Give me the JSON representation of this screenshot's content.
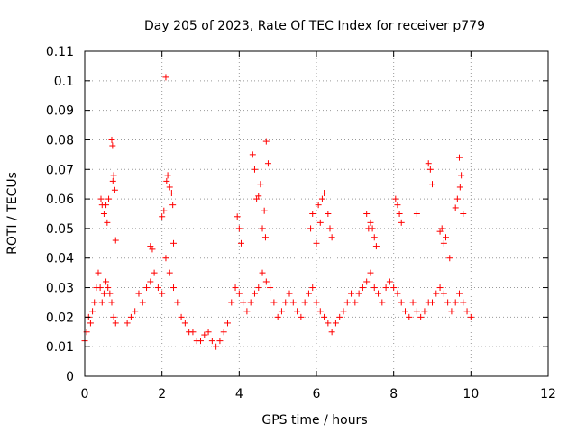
{
  "chart_data": {
    "type": "scatter",
    "title": "Day 205 of 2023, Rate Of TEC Index for receiver p779",
    "xlabel": "GPS time / hours",
    "ylabel": "ROTI / TECUs",
    "xlim": [
      0,
      12
    ],
    "ylim": [
      0,
      0.11
    ],
    "x_ticks": [
      "0",
      "2",
      "4",
      "6",
      "8",
      "10",
      "12"
    ],
    "y_ticks": [
      "0",
      "0.01",
      "0.02",
      "0.03",
      "0.04",
      "0.05",
      "0.06",
      "0.07",
      "0.08",
      "0.09",
      "0.1",
      "0.11"
    ],
    "grid": true,
    "grid_style": "dotted",
    "marker": "+",
    "color": "#ff0000",
    "series": [
      {
        "x": [
          0.0,
          0.05,
          0.1,
          0.15,
          0.2,
          0.25,
          0.3,
          0.35,
          0.4,
          0.45,
          0.5,
          0.55,
          0.6,
          0.65,
          0.7,
          0.75,
          0.8,
          1.1,
          1.2,
          1.3,
          1.4,
          1.5,
          1.6,
          1.7,
          1.8,
          1.9,
          2.0,
          2.1,
          2.2,
          2.3,
          2.4,
          2.5,
          2.6,
          2.7,
          2.8,
          2.9,
          3.0,
          3.1,
          3.2,
          3.3,
          3.4,
          3.5,
          3.6,
          3.7,
          3.8,
          3.9,
          4.0,
          4.1,
          4.2,
          4.3,
          4.4,
          4.5,
          4.6,
          4.7,
          4.8,
          4.9,
          5.0,
          5.1,
          5.2,
          5.3,
          5.4,
          5.5,
          5.6,
          5.7,
          5.8,
          5.9,
          6.0,
          6.1,
          6.2,
          6.3,
          6.4,
          6.5,
          6.6,
          6.7,
          6.8,
          6.9,
          7.0,
          7.1,
          7.2,
          7.3,
          7.4,
          7.5,
          7.6,
          7.7,
          7.8,
          7.9,
          8.0,
          8.1,
          8.2,
          8.3,
          8.4,
          8.5,
          8.6,
          8.7,
          8.8,
          8.9,
          9.0,
          9.1,
          9.2,
          9.3,
          9.4,
          9.5,
          9.6,
          9.7,
          9.8,
          9.9,
          10.0,
          0.42,
          0.45,
          0.5,
          0.55,
          0.58,
          0.62,
          0.7,
          0.72,
          0.73,
          0.75,
          0.78,
          0.8,
          1.7,
          1.75,
          2.0,
          2.05,
          2.1,
          2.12,
          2.15,
          2.2,
          2.25,
          2.28,
          2.3,
          3.95,
          4.0,
          4.05,
          4.35,
          4.4,
          4.45,
          4.5,
          4.55,
          4.6,
          4.65,
          4.68,
          4.7,
          4.75,
          5.85,
          5.9,
          6.0,
          6.05,
          6.1,
          6.15,
          6.2,
          6.3,
          6.35,
          6.4,
          7.3,
          7.35,
          7.4,
          7.45,
          7.5,
          7.55,
          8.05,
          8.1,
          8.15,
          8.2,
          8.6,
          8.9,
          8.95,
          9.0,
          9.2,
          9.25,
          9.3,
          9.35,
          9.45,
          9.6,
          9.65,
          9.7,
          9.72,
          9.75,
          9.8
        ],
        "y": [
          0.012,
          0.015,
          0.02,
          0.018,
          0.022,
          0.025,
          0.03,
          0.035,
          0.03,
          0.025,
          0.028,
          0.032,
          0.03,
          0.028,
          0.025,
          0.02,
          0.018,
          0.018,
          0.02,
          0.022,
          0.028,
          0.025,
          0.03,
          0.032,
          0.035,
          0.03,
          0.028,
          0.04,
          0.035,
          0.03,
          0.025,
          0.02,
          0.018,
          0.015,
          0.015,
          0.012,
          0.012,
          0.014,
          0.015,
          0.012,
          0.01,
          0.012,
          0.015,
          0.018,
          0.025,
          0.03,
          0.028,
          0.025,
          0.022,
          0.025,
          0.028,
          0.03,
          0.035,
          0.032,
          0.03,
          0.025,
          0.02,
          0.022,
          0.025,
          0.028,
          0.025,
          0.022,
          0.02,
          0.025,
          0.028,
          0.03,
          0.025,
          0.022,
          0.02,
          0.018,
          0.015,
          0.018,
          0.02,
          0.022,
          0.025,
          0.028,
          0.025,
          0.028,
          0.03,
          0.032,
          0.035,
          0.03,
          0.028,
          0.025,
          0.03,
          0.032,
          0.03,
          0.028,
          0.025,
          0.022,
          0.02,
          0.025,
          0.022,
          0.02,
          0.022,
          0.025,
          0.025,
          0.028,
          0.03,
          0.028,
          0.025,
          0.022,
          0.025,
          0.028,
          0.025,
          0.022,
          0.02,
          0.06,
          0.058,
          0.055,
          0.058,
          0.052,
          0.06,
          0.08,
          0.078,
          0.066,
          0.068,
          0.063,
          0.046,
          0.044,
          0.043,
          0.054,
          0.056,
          0.1012,
          0.066,
          0.068,
          0.064,
          0.062,
          0.058,
          0.045,
          0.054,
          0.05,
          0.045,
          0.075,
          0.07,
          0.06,
          0.061,
          0.065,
          0.05,
          0.056,
          0.047,
          0.0795,
          0.072,
          0.05,
          0.055,
          0.045,
          0.058,
          0.052,
          0.06,
          0.062,
          0.055,
          0.05,
          0.047,
          0.055,
          0.05,
          0.052,
          0.05,
          0.047,
          0.044,
          0.06,
          0.058,
          0.055,
          0.052,
          0.055,
          0.072,
          0.07,
          0.065,
          0.049,
          0.05,
          0.045,
          0.047,
          0.04,
          0.057,
          0.06,
          0.074,
          0.064,
          0.068,
          0.055
        ]
      }
    ]
  }
}
